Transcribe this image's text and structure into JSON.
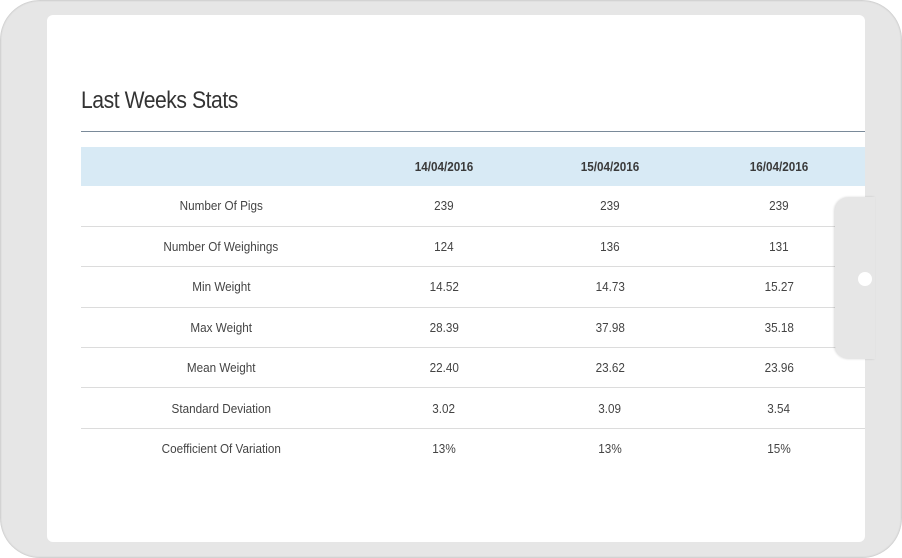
{
  "section": {
    "title": "Last Weeks Stats"
  },
  "table": {
    "headers": [
      "",
      "14/04/2016",
      "15/04/2016",
      "16/04/2016"
    ],
    "rows": [
      {
        "label": "Number Of Pigs",
        "values": [
          "239",
          "239",
          "239"
        ]
      },
      {
        "label": "Number Of Weighings",
        "values": [
          "124",
          "136",
          "131"
        ]
      },
      {
        "label": "Min Weight",
        "values": [
          "14.52",
          "14.73",
          "15.27"
        ]
      },
      {
        "label": "Max Weight",
        "values": [
          "28.39",
          "37.98",
          "35.18"
        ]
      },
      {
        "label": "Mean Weight",
        "values": [
          "22.40",
          "23.62",
          "23.96"
        ]
      },
      {
        "label": "Standard Deviation",
        "values": [
          "3.02",
          "3.09",
          "3.54"
        ]
      },
      {
        "label": "Coefficient Of Variation",
        "values": [
          "13%",
          "13%",
          "15%"
        ]
      }
    ]
  },
  "colors": {
    "header_background": "#d8eaf5",
    "device_frame": "#e6e6e6",
    "rule": "#7a8a99"
  }
}
